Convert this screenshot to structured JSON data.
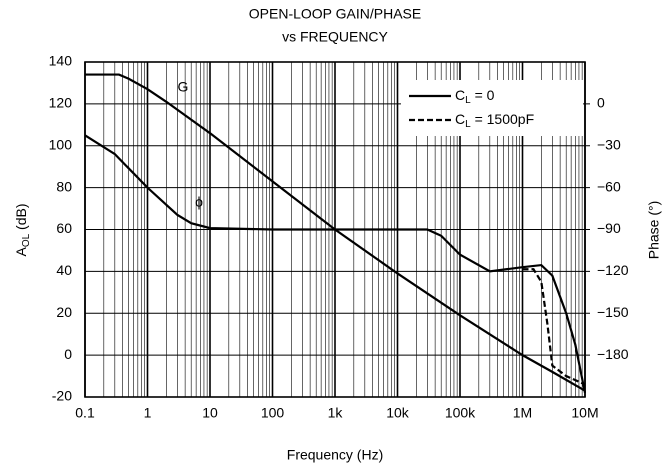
{
  "chart_data": {
    "type": "line",
    "title": [
      "OPEN-LOOP GAIN/PHASE",
      "vs FREQUENCY"
    ],
    "x_label": "Frequency (Hz)",
    "y_label": "AOL (dB)",
    "y2_label": "Phase (°)",
    "log_x": true,
    "grid": true,
    "minor_grid": true,
    "legend": "upper right",
    "annotations": [
      "G",
      "ϕ"
    ],
    "xlim": [
      0.1,
      10000000
    ],
    "xticks": [
      {
        "value": 0.1,
        "label": "0.1"
      },
      1,
      10,
      100,
      {
        "value": 1000,
        "label": "1k"
      },
      {
        "value": 10000,
        "label": "10k"
      },
      {
        "value": 100000,
        "label": "100k"
      },
      {
        "value": 1000000,
        "label": "1M"
      },
      {
        "value": 10000000,
        "label": "10M"
      }
    ],
    "ylim": [
      -20,
      140
    ],
    "yticks": [
      -20,
      0,
      20,
      40,
      60,
      80,
      100,
      120,
      140
    ],
    "y2lim": [
      -210,
      30
    ],
    "y2ticks": [
      0,
      {
        "value": -30,
        "label": "−30"
      },
      {
        "value": -60,
        "label": "−60"
      },
      {
        "value": -90,
        "label": "−90"
      },
      {
        "value": -120,
        "label": "−120"
      },
      {
        "value": -150,
        "label": "−150"
      },
      {
        "value": -180,
        "label": "−180"
      }
    ],
    "series": [
      {
        "color": "#000",
        "dash": false,
        "x": [
          0.1,
          0.35,
          0.5,
          1,
          2,
          10,
          100,
          1000,
          10000,
          100000,
          1000000,
          3000000,
          10000000
        ],
        "values": [
          134,
          134,
          132,
          127,
          121,
          106,
          83,
          60,
          39,
          19,
          0,
          -8,
          -17
        ]
      },
      {
        "name": "CL = 0",
        "color": "#000",
        "dash": false,
        "axis": "y2",
        "x": [
          0.1,
          0.3,
          1,
          3,
          5,
          10,
          100,
          30000,
          50000,
          100000,
          300000,
          1000000,
          2000000,
          3000000,
          5000000,
          7000000,
          10000000
        ],
        "values": [
          -22.5,
          -36,
          -60,
          -79.5,
          -85.5,
          -89,
          -90,
          -90,
          -94.5,
          -108,
          -120,
          -117,
          -115.5,
          -123,
          -150,
          -172.5,
          -207
        ]
      },
      {
        "name": "CL = 1500pF",
        "color": "#000",
        "dash": true,
        "axis": "y2",
        "x": [
          1000000,
          1500000,
          2000000,
          2500000,
          3000000,
          5000000,
          10000000
        ],
        "values": [
          -118.5,
          -118.5,
          -127.5,
          -157.5,
          -187.5,
          -195,
          -201
        ]
      }
    ]
  }
}
